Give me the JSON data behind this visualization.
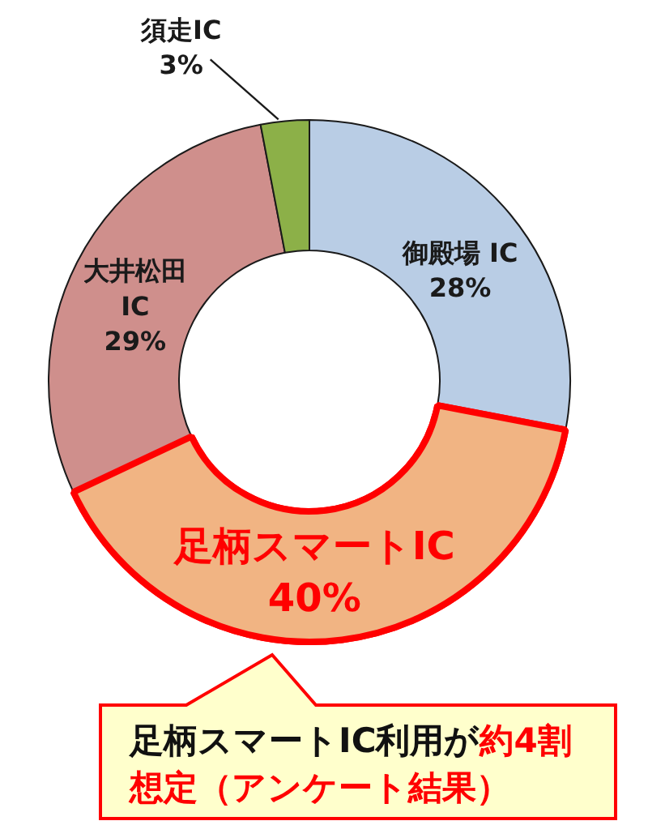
{
  "chart_data": {
    "type": "donut",
    "categories": [
      "御殿場 IC",
      "足柄スマートIC",
      "大井松田IC",
      "須走IC"
    ],
    "values": [
      28,
      40,
      29,
      3
    ],
    "value_labels": [
      "28%",
      "40%",
      "29%",
      "3%"
    ],
    "colors": [
      "#b9cde5",
      "#f1b483",
      "#cf8f8c",
      "#8cb048"
    ],
    "annotations": [
      "足柄スマートIC利用が",
      "約4割",
      "想定（アンケート結果）"
    ]
  }
}
